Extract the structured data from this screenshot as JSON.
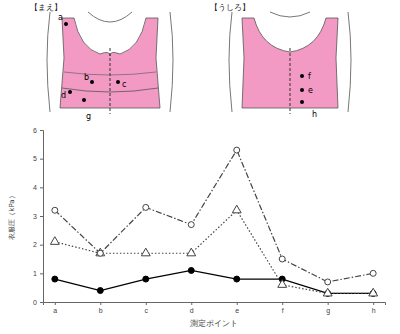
{
  "illustration": {
    "front_label": "【まえ】",
    "back_label": "【うしろ】",
    "front_points": [
      "a",
      "b",
      "c",
      "d",
      "g"
    ],
    "back_points": [
      "f",
      "e",
      "h"
    ]
  },
  "chart_data": {
    "type": "line",
    "x_label": "測定ポイント",
    "y_label": "衣服圧（kPa）",
    "categories": [
      "a",
      "b",
      "c",
      "d",
      "e",
      "f",
      "g",
      "h"
    ],
    "ylim": [
      0,
      6
    ],
    "yticks": [
      0,
      1,
      2,
      3,
      4,
      5,
      6
    ],
    "series": [
      {
        "color": "#000000",
        "marker": "filled-circle",
        "line_style": "solid",
        "values": [
          0.8,
          0.4,
          0.8,
          1.1,
          0.8,
          0.8,
          0.3,
          0.3
        ]
      },
      {
        "color": "#444444",
        "marker": "open-triangle",
        "line_style": "dotted",
        "values": [
          2.1,
          1.7,
          1.7,
          1.7,
          3.2,
          0.6,
          0.3,
          0.3
        ]
      },
      {
        "color": "#444444",
        "marker": "open-circle",
        "line_style": "dashdot",
        "values": [
          3.2,
          1.7,
          3.3,
          2.7,
          5.3,
          1.5,
          0.7,
          1.0
        ]
      }
    ]
  }
}
